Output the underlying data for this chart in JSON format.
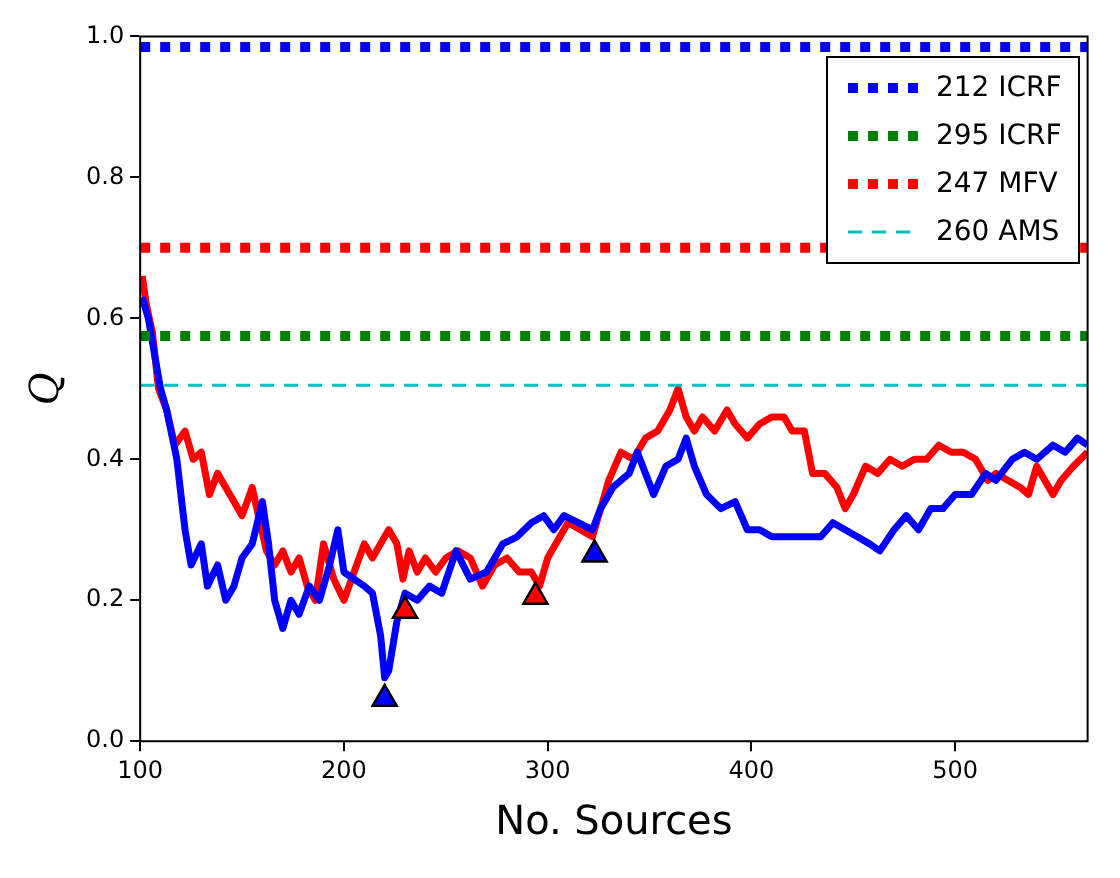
{
  "chart_data": {
    "type": "line",
    "xlabel": "No. Sources",
    "ylabel": "Q",
    "xlim": [
      100,
      565
    ],
    "ylim": [
      0,
      1
    ],
    "xticks": [
      100,
      200,
      300,
      400,
      500
    ],
    "yticks": [
      {
        "value": 0,
        "label": "0.0"
      },
      {
        "value": 0.2,
        "label": "0.2"
      },
      {
        "value": 0.4,
        "label": "0.4"
      },
      {
        "value": 0.6,
        "label": "0.6"
      },
      {
        "value": 0.8,
        "label": "0.8"
      },
      {
        "value": 1,
        "label": "1.0"
      }
    ],
    "grid": false,
    "legend": "top right",
    "series": [
      {
        "name": "212 ICRF",
        "color": "#0000ff",
        "line_style": "dotted",
        "marker": "none",
        "x": [
          100,
          565
        ],
        "values": [
          0.985,
          0.985
        ]
      },
      {
        "name": "295 ICRF",
        "color": "#008000",
        "line_style": "dotted",
        "marker": "none",
        "x": [
          100,
          565
        ],
        "values": [
          0.575,
          0.575
        ]
      },
      {
        "name": "247 MFV",
        "color": "#ff0000",
        "line_style": "dotted",
        "marker": "none",
        "x": [
          100,
          565
        ],
        "values": [
          0.7,
          0.7
        ]
      },
      {
        "name": "260 AMS",
        "color": "#00bfbf",
        "line_style": "dashed",
        "marker": "none",
        "x": [
          100,
          565
        ],
        "values": [
          0.505,
          0.505
        ]
      },
      {
        "color": "#0000ff",
        "line_style": "solid",
        "marker": "none",
        "x": [
          101,
          104,
          107,
          110,
          113,
          118,
          122,
          125,
          130,
          133,
          138,
          142,
          146,
          150,
          155,
          160,
          163,
          166,
          170,
          174,
          178,
          183,
          188,
          193,
          197,
          200,
          205,
          210,
          214,
          218,
          220,
          222,
          226,
          230,
          236,
          242,
          248,
          255,
          262,
          270,
          278,
          285,
          292,
          298,
          303,
          308,
          315,
          322,
          326,
          332,
          340,
          344,
          348,
          352,
          358,
          364,
          368,
          372,
          378,
          385,
          392,
          398,
          404,
          410,
          420,
          428,
          434,
          440,
          446,
          452,
          458,
          463,
          470,
          476,
          482,
          488,
          494,
          500,
          508,
          515,
          520,
          528,
          534,
          540,
          548,
          554,
          560,
          565
        ],
        "values": [
          0.63,
          0.6,
          0.55,
          0.5,
          0.47,
          0.4,
          0.3,
          0.25,
          0.28,
          0.22,
          0.25,
          0.2,
          0.22,
          0.26,
          0.28,
          0.34,
          0.28,
          0.2,
          0.16,
          0.2,
          0.18,
          0.22,
          0.2,
          0.25,
          0.3,
          0.24,
          0.23,
          0.22,
          0.21,
          0.15,
          0.09,
          0.1,
          0.17,
          0.21,
          0.2,
          0.22,
          0.21,
          0.27,
          0.23,
          0.24,
          0.28,
          0.29,
          0.31,
          0.32,
          0.3,
          0.32,
          0.31,
          0.3,
          0.33,
          0.36,
          0.38,
          0.41,
          0.38,
          0.35,
          0.39,
          0.4,
          0.43,
          0.39,
          0.35,
          0.33,
          0.34,
          0.3,
          0.3,
          0.29,
          0.29,
          0.29,
          0.29,
          0.31,
          0.3,
          0.29,
          0.28,
          0.27,
          0.3,
          0.32,
          0.3,
          0.33,
          0.33,
          0.35,
          0.35,
          0.38,
          0.37,
          0.4,
          0.41,
          0.4,
          0.42,
          0.41,
          0.43,
          0.42
        ]
      },
      {
        "color": "#ff0000",
        "line_style": "solid",
        "marker": "none",
        "x": [
          101,
          103,
          106,
          109,
          113,
          117,
          122,
          126,
          130,
          134,
          138,
          142,
          146,
          150,
          155,
          158,
          162,
          166,
          170,
          174,
          178,
          182,
          186,
          190,
          195,
          200,
          205,
          210,
          214,
          218,
          222,
          226,
          229,
          232,
          236,
          240,
          245,
          250,
          256,
          262,
          268,
          274,
          280,
          286,
          292,
          296,
          300,
          304,
          310,
          316,
          322,
          326,
          330,
          336,
          342,
          348,
          354,
          360,
          364,
          368,
          372,
          376,
          382,
          388,
          392,
          398,
          404,
          410,
          416,
          420,
          426,
          430,
          436,
          442,
          446,
          450,
          456,
          462,
          468,
          474,
          480,
          486,
          492,
          498,
          504,
          510,
          516,
          520,
          526,
          532,
          536,
          540,
          544,
          548,
          552,
          558,
          565
        ],
        "values": [
          0.66,
          0.62,
          0.58,
          0.5,
          0.47,
          0.42,
          0.44,
          0.4,
          0.41,
          0.35,
          0.38,
          0.36,
          0.34,
          0.32,
          0.36,
          0.32,
          0.27,
          0.25,
          0.27,
          0.24,
          0.26,
          0.22,
          0.2,
          0.28,
          0.23,
          0.2,
          0.24,
          0.28,
          0.26,
          0.28,
          0.3,
          0.28,
          0.23,
          0.27,
          0.24,
          0.26,
          0.24,
          0.26,
          0.27,
          0.26,
          0.22,
          0.25,
          0.26,
          0.24,
          0.24,
          0.22,
          0.26,
          0.28,
          0.31,
          0.3,
          0.29,
          0.33,
          0.37,
          0.41,
          0.4,
          0.43,
          0.44,
          0.47,
          0.5,
          0.46,
          0.44,
          0.46,
          0.44,
          0.47,
          0.45,
          0.43,
          0.45,
          0.46,
          0.46,
          0.44,
          0.44,
          0.38,
          0.38,
          0.36,
          0.33,
          0.35,
          0.39,
          0.38,
          0.4,
          0.39,
          0.4,
          0.4,
          0.42,
          0.41,
          0.41,
          0.4,
          0.37,
          0.38,
          0.37,
          0.36,
          0.35,
          0.39,
          0.37,
          0.35,
          0.37,
          0.39,
          0.41
        ]
      },
      {
        "type": "scatter",
        "color": "#0000ff",
        "marker": "triangle",
        "x": [
          220,
          323
        ],
        "values": [
          0.06,
          0.265
        ]
      },
      {
        "type": "scatter",
        "color": "#ff0000",
        "marker": "triangle",
        "x": [
          230,
          294
        ],
        "values": [
          0.185,
          0.205
        ]
      }
    ]
  }
}
